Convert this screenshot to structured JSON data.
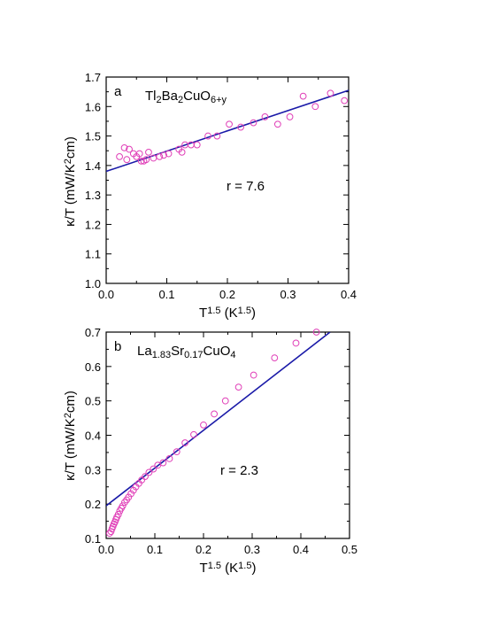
{
  "colors": {
    "data": "#e040b8",
    "fit": "#1a1aa8",
    "axis": "#000000"
  },
  "chart_data": [
    {
      "type": "scatter",
      "panel_letter": "a",
      "compound": {
        "parts": [
          [
            "Tl",
            ""
          ],
          [
            "2",
            "sub"
          ],
          [
            "Ba",
            ""
          ],
          [
            "2",
            "sub"
          ],
          [
            "CuO",
            ""
          ],
          [
            "6+y",
            "sub"
          ]
        ]
      },
      "annotation": "r = 7.6",
      "ylabel": {
        "parts": [
          [
            "κ/T  (mW/K",
            ""
          ],
          [
            "2",
            "sup"
          ],
          [
            "cm)",
            ""
          ]
        ]
      },
      "xlabel": {
        "parts": [
          [
            "T",
            ""
          ],
          [
            "1.5",
            "sup"
          ],
          [
            " (K",
            ""
          ],
          [
            "1.5",
            "sup"
          ],
          [
            ")",
            ""
          ]
        ]
      },
      "xlim": [
        0,
        0.4
      ],
      "ylim": [
        1.0,
        1.7
      ],
      "xticks": [
        0,
        0.1,
        0.2,
        0.3,
        0.4
      ],
      "xtick_labels": [
        "0.0",
        "0.1",
        "0.2",
        "0.3",
        "0.4"
      ],
      "yticks": [
        1.0,
        1.1,
        1.2,
        1.3,
        1.4,
        1.5,
        1.6,
        1.7
      ],
      "ytick_labels": [
        "1.0",
        "1.1",
        "1.2",
        "1.3",
        "1.4",
        "1.5",
        "1.6",
        "1.7"
      ],
      "x": [
        0.022,
        0.03,
        0.034,
        0.038,
        0.045,
        0.05,
        0.055,
        0.058,
        0.062,
        0.066,
        0.07,
        0.078,
        0.088,
        0.095,
        0.103,
        0.12,
        0.125,
        0.13,
        0.14,
        0.15,
        0.168,
        0.183,
        0.203,
        0.222,
        0.243,
        0.262,
        0.283,
        0.303,
        0.325,
        0.345,
        0.37,
        0.393
      ],
      "y": [
        1.43,
        1.46,
        1.42,
        1.455,
        1.44,
        1.43,
        1.44,
        1.415,
        1.415,
        1.42,
        1.445,
        1.425,
        1.43,
        1.435,
        1.44,
        1.455,
        1.445,
        1.47,
        1.47,
        1.47,
        1.5,
        1.5,
        1.54,
        1.53,
        1.545,
        1.565,
        1.54,
        1.565,
        1.635,
        1.6,
        1.645,
        1.62
      ],
      "fit": {
        "x": [
          0,
          0.4
        ],
        "y": [
          1.38,
          1.655
        ]
      }
    },
    {
      "type": "scatter",
      "panel_letter": "b",
      "compound": {
        "parts": [
          [
            "La",
            ""
          ],
          [
            "1.83",
            "sub"
          ],
          [
            "Sr",
            ""
          ],
          [
            "0.17",
            "sub"
          ],
          [
            "CuO",
            ""
          ],
          [
            "4",
            "sub"
          ]
        ]
      },
      "annotation": "r = 2.3",
      "ylabel": {
        "parts": [
          [
            "κ/T  (mW/K",
            ""
          ],
          [
            "2",
            "sup"
          ],
          [
            "cm)",
            ""
          ]
        ]
      },
      "xlabel": {
        "parts": [
          [
            "T",
            ""
          ],
          [
            "1.5",
            "sup"
          ],
          [
            " (K",
            ""
          ],
          [
            "1.5",
            "sup"
          ],
          [
            ")",
            ""
          ]
        ]
      },
      "xlim": [
        0,
        0.5
      ],
      "ylim": [
        0.1,
        0.7
      ],
      "xticks": [
        0,
        0.1,
        0.2,
        0.3,
        0.4,
        0.5
      ],
      "xtick_labels": [
        "0.0",
        "0.1",
        "0.2",
        "0.3",
        "0.4",
        "0.5"
      ],
      "yticks": [
        0.1,
        0.2,
        0.3,
        0.4,
        0.5,
        0.6,
        0.7
      ],
      "ytick_labels": [
        "0.1",
        "0.2",
        "0.3",
        "0.4",
        "0.5",
        "0.6",
        "0.7"
      ],
      "x": [
        0.007,
        0.01,
        0.012,
        0.014,
        0.016,
        0.018,
        0.02,
        0.022,
        0.025,
        0.028,
        0.031,
        0.034,
        0.038,
        0.042,
        0.046,
        0.051,
        0.056,
        0.061,
        0.067,
        0.073,
        0.08,
        0.088,
        0.097,
        0.106,
        0.117,
        0.13,
        0.145,
        0.162,
        0.18,
        0.2,
        0.222,
        0.245,
        0.272,
        0.303,
        0.346,
        0.39,
        0.432
      ],
      "y": [
        0.115,
        0.12,
        0.128,
        0.135,
        0.142,
        0.148,
        0.155,
        0.162,
        0.17,
        0.18,
        0.188,
        0.195,
        0.205,
        0.212,
        0.22,
        0.23,
        0.24,
        0.25,
        0.26,
        0.27,
        0.28,
        0.292,
        0.302,
        0.313,
        0.32,
        0.332,
        0.352,
        0.378,
        0.402,
        0.43,
        0.462,
        0.5,
        0.54,
        0.575,
        0.625,
        0.668,
        0.7
      ],
      "fit": {
        "x": [
          0,
          0.46
        ],
        "y": [
          0.195,
          0.7
        ]
      }
    }
  ]
}
